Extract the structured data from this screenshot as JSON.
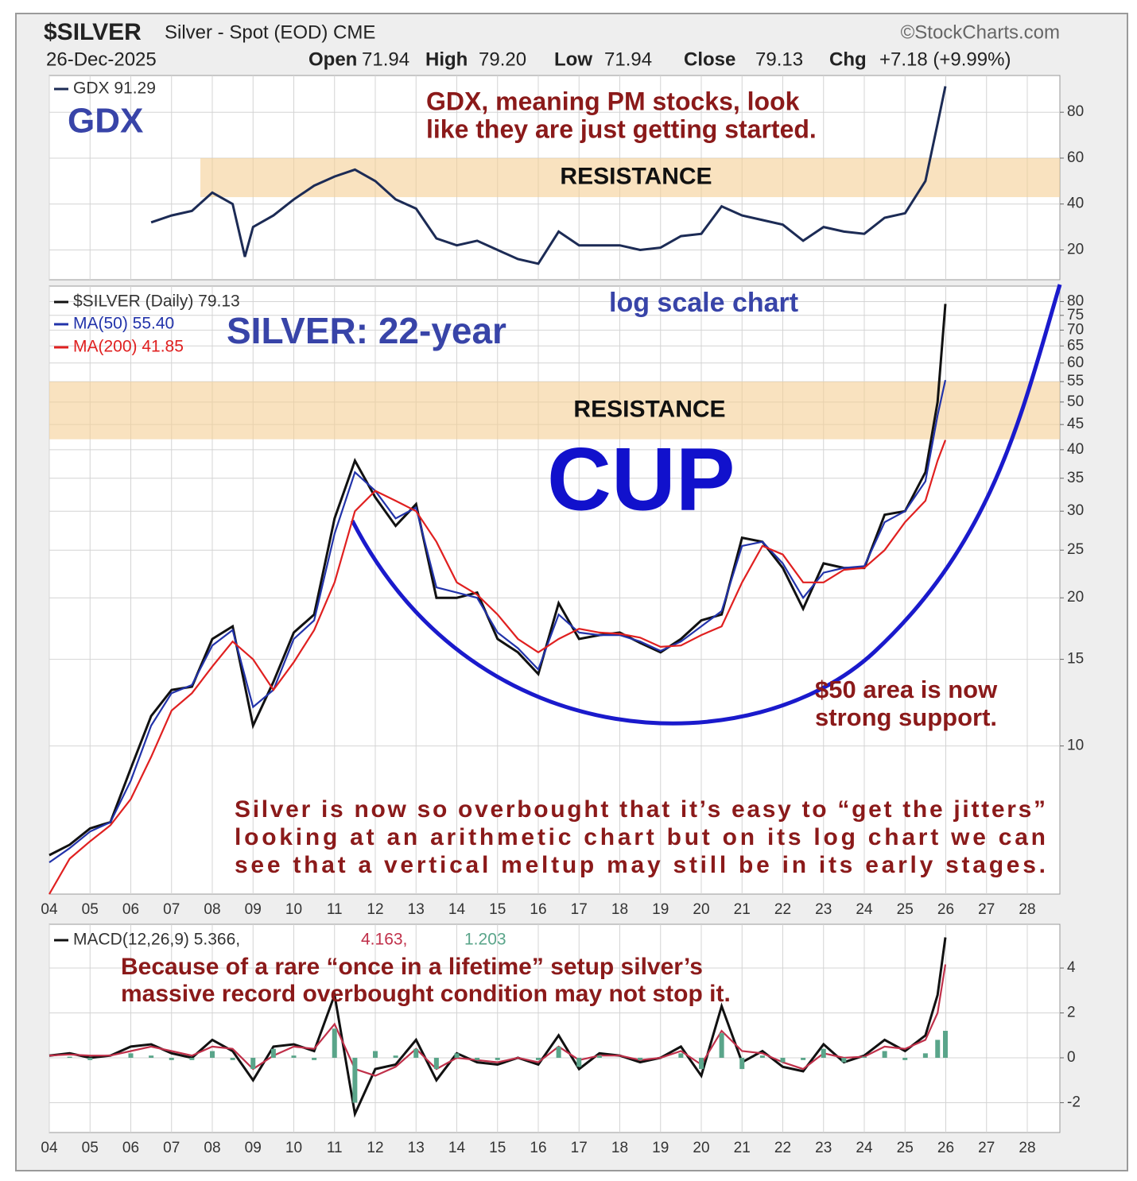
{
  "header": {
    "symbol": "$SILVER",
    "description": "Silver - Spot (EOD) CME",
    "source": "©StockCharts.com",
    "date": "26-Dec-2025",
    "quote": [
      {
        "label": "Open",
        "value": "71.94"
      },
      {
        "label": "High",
        "value": "79.20"
      },
      {
        "label": "Low",
        "value": "71.94"
      },
      {
        "label": "Close",
        "value": "79.13"
      },
      {
        "label": "Chg",
        "value": "+7.18 (+9.99%)"
      }
    ]
  },
  "chart_data": [
    {
      "type": "line",
      "xlim": [
        2004,
        2028.8
      ],
      "ylim": [
        7,
        96
      ],
      "yticks": [
        20,
        40,
        60,
        80
      ],
      "grid": true,
      "x": [
        2006.5,
        2007,
        2007.5,
        2008,
        2008.5,
        2008.8,
        2009,
        2009.5,
        2010,
        2010.5,
        2011,
        2011.5,
        2012,
        2012.5,
        2013,
        2013.5,
        2014,
        2014.5,
        2015,
        2015.5,
        2016,
        2016.5,
        2017,
        2017.5,
        2018,
        2018.5,
        2019,
        2019.5,
        2020,
        2020.5,
        2021,
        2021.5,
        2022,
        2022.5,
        2023,
        2023.5,
        2024,
        2024.5,
        2025,
        2025.5,
        2025.8,
        2025.99
      ],
      "series": [
        {
          "name": "GDX 91.29",
          "color": "#1c2b55",
          "values": [
            32,
            35,
            37,
            45,
            40,
            17,
            30,
            35,
            42,
            48,
            52,
            55,
            50,
            42,
            38,
            25,
            22,
            24,
            20,
            16,
            14,
            28,
            22,
            22,
            22,
            20,
            21,
            26,
            27,
            39,
            35,
            33,
            31,
            24,
            30,
            28,
            27,
            34,
            36,
            50,
            75,
            91.29
          ]
        }
      ],
      "bands": [
        {
          "label": "RESISTANCE",
          "range": [
            43,
            60
          ]
        }
      ],
      "annotations": [
        "GDX",
        "GDX, meaning PM stocks, look",
        "like they are just getting started."
      ]
    },
    {
      "type": "line",
      "log_scale": true,
      "xlim": [
        2004,
        2028.8
      ],
      "ylim": [
        5,
        86
      ],
      "yticks": [
        10,
        15,
        20,
        25,
        30,
        35,
        40,
        45,
        50,
        55,
        60,
        65,
        70,
        75,
        80
      ],
      "grid": true,
      "xticks": [
        {
          "value": 2004,
          "label": "04"
        },
        {
          "value": 2005,
          "label": "05"
        },
        {
          "value": 2006,
          "label": "06"
        },
        {
          "value": 2007,
          "label": "07"
        },
        {
          "value": 2008,
          "label": "08"
        },
        {
          "value": 2009,
          "label": "09"
        },
        {
          "value": 2010,
          "label": "10"
        },
        {
          "value": 2011,
          "label": "11"
        },
        {
          "value": 2012,
          "label": "12"
        },
        {
          "value": 2013,
          "label": "13"
        },
        {
          "value": 2014,
          "label": "14"
        },
        {
          "value": 2015,
          "label": "15"
        },
        {
          "value": 2016,
          "label": "16"
        },
        {
          "value": 2017,
          "label": "17"
        },
        {
          "value": 2018,
          "label": "18"
        },
        {
          "value": 2019,
          "label": "19"
        },
        {
          "value": 2020,
          "label": "20"
        },
        {
          "value": 2021,
          "label": "21"
        },
        {
          "value": 2022,
          "label": "22"
        },
        {
          "value": 2023,
          "label": "23"
        },
        {
          "value": 2024,
          "label": "24"
        },
        {
          "value": 2025,
          "label": "25"
        },
        {
          "value": 2026,
          "label": "26"
        },
        {
          "value": 2027,
          "label": "27"
        },
        {
          "value": 2028,
          "label": "28"
        }
      ],
      "x": [
        2004,
        2004.5,
        2005,
        2005.5,
        2006,
        2006.5,
        2007,
        2007.5,
        2008,
        2008.5,
        2009,
        2009.5,
        2010,
        2010.5,
        2011,
        2011.5,
        2012,
        2012.5,
        2013,
        2013.5,
        2014,
        2014.5,
        2015,
        2015.5,
        2016,
        2016.5,
        2017,
        2017.5,
        2018,
        2018.5,
        2019,
        2019.5,
        2020,
        2020.5,
        2021,
        2021.5,
        2022,
        2022.5,
        2023,
        2023.5,
        2024,
        2024.5,
        2025,
        2025.5,
        2025.8,
        2025.99
      ],
      "series": [
        {
          "name": "$SILVER (Daily) 79.13",
          "color": "#111111",
          "values": [
            6.0,
            6.3,
            6.8,
            7.0,
            9.0,
            11.5,
            13.0,
            13.2,
            16.5,
            17.5,
            11.0,
            13.5,
            17.0,
            18.5,
            29.0,
            38.0,
            32.0,
            28.0,
            31.0,
            20.0,
            20.0,
            20.5,
            16.5,
            15.5,
            14.0,
            19.5,
            16.5,
            16.8,
            17.0,
            16.2,
            15.5,
            16.5,
            18.0,
            18.5,
            26.5,
            26.0,
            23.0,
            19.0,
            23.5,
            23.0,
            23.0,
            29.5,
            30.0,
            36.0,
            50.0,
            79.13
          ]
        },
        {
          "name": "MA(50) 55.40",
          "color": "#2233aa",
          "values": [
            5.8,
            6.2,
            6.7,
            7.0,
            8.5,
            11.0,
            12.8,
            13.3,
            16.0,
            17.2,
            12.0,
            13.0,
            16.5,
            18.0,
            27.0,
            36.0,
            33.0,
            29.0,
            30.5,
            21.0,
            20.5,
            20.0,
            17.0,
            15.8,
            14.3,
            18.5,
            17.0,
            16.8,
            16.8,
            16.3,
            15.6,
            16.3,
            17.5,
            18.8,
            25.5,
            26.0,
            23.5,
            20.0,
            22.5,
            23.0,
            23.2,
            28.5,
            30.0,
            34.5,
            47.0,
            55.4
          ]
        },
        {
          "name": "MA(200) 41.85",
          "color": "#e02020",
          "values": [
            5.0,
            5.9,
            6.4,
            6.9,
            7.8,
            9.5,
            11.8,
            12.8,
            14.5,
            16.3,
            15.0,
            13.0,
            14.8,
            17.2,
            21.5,
            30.0,
            33.0,
            31.5,
            30.0,
            26.0,
            21.5,
            20.3,
            18.5,
            16.5,
            15.5,
            16.5,
            17.3,
            17.0,
            16.9,
            16.6,
            15.9,
            16.0,
            16.8,
            17.5,
            21.5,
            25.5,
            24.5,
            21.5,
            21.5,
            22.8,
            23.0,
            25.0,
            28.5,
            31.5,
            38.0,
            41.85
          ]
        }
      ],
      "bands": [
        {
          "label": "RESISTANCE",
          "range": [
            42,
            55
          ]
        }
      ],
      "annotations": [
        "SILVER: 22-year",
        "log scale chart",
        "CUP",
        "$50 area is now",
        "strong support.",
        "Silver is now so overbought that it’s easy to “get the jitters”",
        "looking at an arithmetic chart but on its log chart we can",
        "see that a vertical meltup may still be in its early stages."
      ]
    },
    {
      "type": "line",
      "xlim": [
        2004,
        2028.8
      ],
      "ylim": [
        -3.33,
        5.95
      ],
      "yticks": [
        -2,
        0,
        2,
        4
      ],
      "grid": true,
      "xticks": [
        {
          "value": 2004,
          "label": "04"
        },
        {
          "value": 2005,
          "label": "05"
        },
        {
          "value": 2006,
          "label": "06"
        },
        {
          "value": 2007,
          "label": "07"
        },
        {
          "value": 2008,
          "label": "08"
        },
        {
          "value": 2009,
          "label": "09"
        },
        {
          "value": 2010,
          "label": "10"
        },
        {
          "value": 2011,
          "label": "11"
        },
        {
          "value": 2012,
          "label": "12"
        },
        {
          "value": 2013,
          "label": "13"
        },
        {
          "value": 2014,
          "label": "14"
        },
        {
          "value": 2015,
          "label": "15"
        },
        {
          "value": 2016,
          "label": "16"
        },
        {
          "value": 2017,
          "label": "17"
        },
        {
          "value": 2018,
          "label": "18"
        },
        {
          "value": 2019,
          "label": "19"
        },
        {
          "value": 2020,
          "label": "20"
        },
        {
          "value": 2021,
          "label": "21"
        },
        {
          "value": 2022,
          "label": "22"
        },
        {
          "value": 2023,
          "label": "23"
        },
        {
          "value": 2024,
          "label": "24"
        },
        {
          "value": 2025,
          "label": "25"
        },
        {
          "value": 2026,
          "label": "26"
        },
        {
          "value": 2027,
          "label": "27"
        },
        {
          "value": 2028,
          "label": "28"
        }
      ],
      "x": [
        2004,
        2004.5,
        2005,
        2005.5,
        2006,
        2006.5,
        2007,
        2007.5,
        2008,
        2008.5,
        2009,
        2009.5,
        2010,
        2010.5,
        2011,
        2011.5,
        2012,
        2012.5,
        2013,
        2013.5,
        2014,
        2014.5,
        2015,
        2015.5,
        2016,
        2016.5,
        2017,
        2017.5,
        2018,
        2018.5,
        2019,
        2019.5,
        2020,
        2020.5,
        2021,
        2021.5,
        2022,
        2022.5,
        2023,
        2023.5,
        2024,
        2024.5,
        2025,
        2025.5,
        2025.8,
        2025.99
      ],
      "series": [
        {
          "name": "MACD(12,26,9) 5.366,",
          "color": "#111111",
          "values": [
            0.1,
            0.2,
            0,
            0.1,
            0.5,
            0.6,
            0.2,
            0,
            0.8,
            0.3,
            -1.0,
            0.5,
            0.6,
            0.3,
            2.8,
            -2.5,
            -0.5,
            -0.3,
            0.8,
            -1.0,
            0.2,
            -0.2,
            -0.3,
            0,
            -0.3,
            1.0,
            -0.5,
            0.2,
            0.1,
            -0.2,
            0,
            0.5,
            -0.8,
            2.3,
            -0.2,
            0.3,
            -0.4,
            -0.6,
            0.6,
            -0.2,
            0.1,
            0.8,
            0.3,
            1.0,
            2.8,
            5.366
          ]
        },
        {
          "name": "4.163,",
          "color": "#c0304a",
          "values": [
            0.1,
            0.15,
            0.1,
            0.1,
            0.3,
            0.5,
            0.3,
            0.1,
            0.5,
            0.4,
            -0.5,
            0.1,
            0.5,
            0.4,
            1.5,
            -0.5,
            -0.8,
            -0.4,
            0.4,
            -0.5,
            0,
            -0.1,
            -0.2,
            0,
            -0.2,
            0.5,
            -0.1,
            0.1,
            0.1,
            -0.1,
            0,
            0.3,
            -0.3,
            1.2,
            0.3,
            0.2,
            -0.2,
            -0.5,
            0.2,
            0,
            0.05,
            0.5,
            0.4,
            0.8,
            2.0,
            4.163
          ]
        },
        {
          "name": "1.203",
          "color": "#5aa58a",
          "style": "bar",
          "values": [
            0,
            0.05,
            -0.1,
            0,
            0.2,
            0.1,
            -0.1,
            -0.1,
            0.3,
            -0.1,
            -0.5,
            0.4,
            0.1,
            -0.1,
            1.3,
            -2.0,
            0.3,
            0.1,
            0.4,
            -0.5,
            0.2,
            -0.1,
            -0.1,
            0,
            -0.1,
            0.5,
            -0.4,
            0.1,
            0,
            -0.1,
            0,
            0.2,
            -0.5,
            1.1,
            -0.5,
            0.1,
            -0.2,
            -0.1,
            0.4,
            -0.2,
            0.05,
            0.3,
            -0.1,
            0.2,
            0.8,
            1.203
          ]
        }
      ],
      "annotations": [
        "Because of a rare “once in a lifetime” setup silver’s",
        "massive record  overbought condition may not stop it."
      ]
    }
  ]
}
